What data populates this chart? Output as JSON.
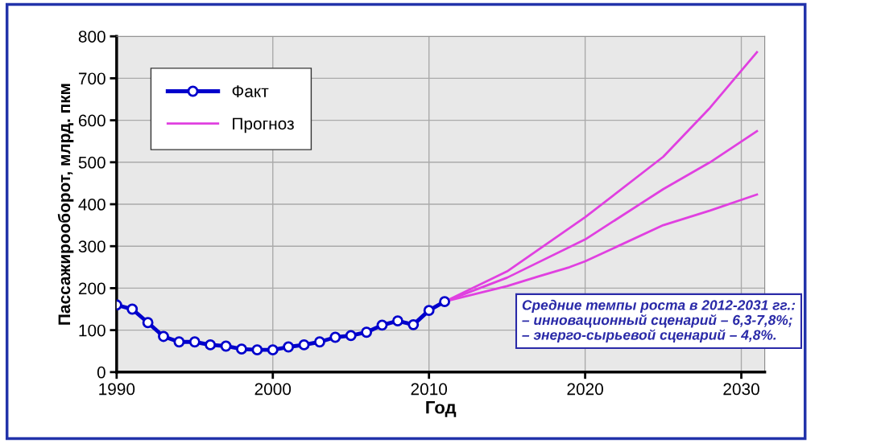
{
  "chart_data": {
    "type": "line",
    "xlabel": "Год",
    "ylabel": "Пассажирооборот, млрд. пкм",
    "xlim": [
      1990,
      2031.5
    ],
    "xticks": [
      1990,
      2000,
      2010,
      2020,
      2030
    ],
    "ylim": [
      0,
      800
    ],
    "yticks": [
      0,
      100,
      200,
      300,
      400,
      500,
      600,
      700,
      800
    ],
    "grid": true,
    "legend": "top left",
    "series": [
      {
        "name": "Факт",
        "color": "#0000cc",
        "marker": "circle",
        "x": [
          1990,
          1991,
          1992,
          1993,
          1994,
          1995,
          1996,
          1997,
          1998,
          1999,
          2000,
          2001,
          2002,
          2003,
          2004,
          2005,
          2006,
          2007,
          2008,
          2009,
          2010,
          2011
        ],
        "values": [
          160,
          150,
          118,
          85,
          72,
          72,
          65,
          62,
          55,
          53,
          53,
          60,
          65,
          72,
          83,
          87,
          95,
          112,
          122,
          113,
          147,
          168
        ]
      },
      {
        "name": "Прогноз",
        "color": "#e040e0",
        "marker": "none",
        "x": [
          2011,
          2015,
          2020,
          2025,
          2028,
          2031
        ],
        "values": [
          168,
          240,
          369,
          513,
          630,
          762
        ]
      },
      {
        "color": "#e040e0",
        "marker": "none",
        "x": [
          2011,
          2015,
          2020,
          2025,
          2028,
          2031
        ],
        "values": [
          168,
          225,
          316,
          436,
          500,
          574
        ]
      },
      {
        "color": "#e040e0",
        "marker": "none",
        "x": [
          2011,
          2015,
          2017,
          2019,
          2020,
          2025,
          2028,
          2031
        ],
        "values": [
          168,
          205,
          228,
          250,
          264,
          350,
          385,
          423
        ]
      }
    ],
    "annotations": [
      "Средние темпы роста в 2012-2031 гг.:\n– инновационный сценарий – 6,3-7,8%;\n– энерго-сырьевой сценарий – 4,8%."
    ]
  }
}
